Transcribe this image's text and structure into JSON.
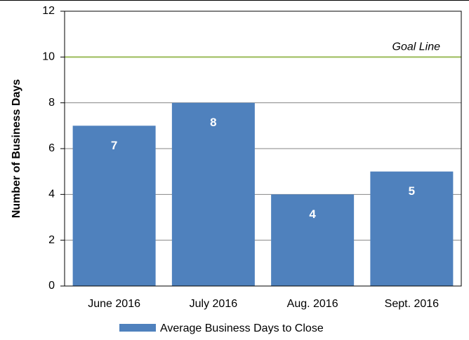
{
  "chart_data": {
    "type": "bar",
    "ylabel": "Number of Business Days",
    "categories": [
      "June 2016",
      "July 2016",
      "Aug. 2016",
      "Sept. 2016"
    ],
    "series": [
      {
        "name": "Average Business Days to Close",
        "color": "#4f81bd",
        "values": [
          7,
          8,
          4,
          5
        ]
      }
    ],
    "ylim": [
      0,
      12
    ],
    "yticks": [
      0,
      2,
      4,
      6,
      8,
      10,
      12
    ],
    "grid": true,
    "goal_line": {
      "value": 10,
      "label": "Goal Line",
      "color": "#9bbb59"
    },
    "legend": "bottom"
  }
}
